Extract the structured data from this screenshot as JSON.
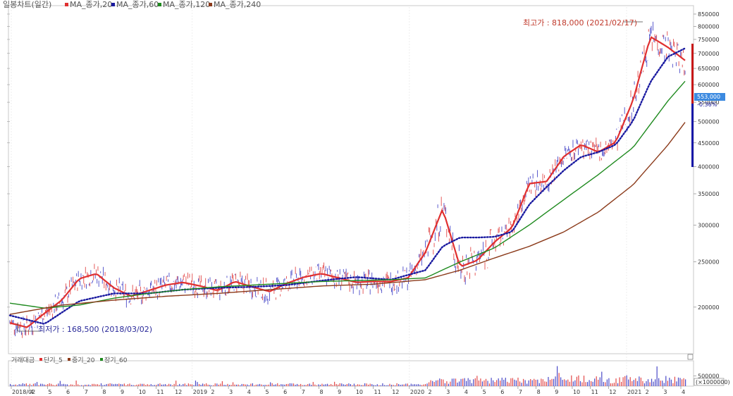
{
  "legend": {
    "main": "일봉차트(일간)",
    "items": [
      {
        "label": "MA_종가,20",
        "color": "#e03030"
      },
      {
        "label": "MA_종가,60",
        "color": "#1a1aa0"
      },
      {
        "label": "MA_종가,120",
        "color": "#1e8a1e"
      },
      {
        "label": "MA_종가,240",
        "color": "#8b3a1a"
      }
    ]
  },
  "volume_legend": {
    "main": "거래대금",
    "items": [
      {
        "label": "단기_5",
        "color": "#e03030"
      },
      {
        "label": "중기_20",
        "color": "#8b3a1a"
      },
      {
        "label": "장기_60",
        "color": "#1e8a1e"
      }
    ]
  },
  "chart_data": {
    "type": "line",
    "title": "",
    "yscale": "log",
    "ylim": [
      160000,
      880000
    ],
    "y_ticks": [
      200000,
      250000,
      300000,
      350000,
      400000,
      450000,
      500000,
      550000,
      600000,
      650000,
      700000,
      750000,
      800000,
      850000
    ],
    "y_tick_labels": [
      "200000",
      "250000",
      "300000",
      "350000",
      "400000",
      "450000",
      "500000",
      "550000",
      "600000",
      "650000",
      "700000",
      "750000",
      "800000",
      "850000"
    ],
    "x_tick_labels": [
      "2018/02",
      "4",
      "5",
      "6",
      "7",
      "8",
      "9",
      "10",
      "11",
      "12",
      "2019",
      "2",
      "3",
      "4",
      "5",
      "6",
      "7",
      "8",
      "9",
      "10",
      "11",
      "12",
      "2020",
      "2",
      "3",
      "4",
      "5",
      "6",
      "7",
      "8",
      "9",
      "10",
      "11",
      "12",
      "2021",
      "2",
      "3",
      "4"
    ],
    "current_price": {
      "label": "553,000",
      "change": "-0.36%"
    },
    "annotations": {
      "high": {
        "text": "최고가 : 818,000 (2021/02/17)",
        "value": 818000
      },
      "low": {
        "text": "최저가 : 168,500 (2018/03/02)",
        "value": 168500
      }
    },
    "series": [
      {
        "name": "MA_종가,20",
        "color": "#e03030",
        "x": [
          0,
          2,
          4,
          6,
          8,
          10,
          12,
          14,
          16,
          18,
          20,
          22,
          24,
          26,
          28,
          30,
          32,
          34,
          36,
          38,
          40,
          42,
          44,
          46,
          48,
          50,
          52,
          54,
          56,
          58,
          60,
          62,
          64,
          66,
          68,
          70,
          72,
          74,
          76,
          78
        ],
        "values": [
          185000,
          181000,
          194000,
          207000,
          230000,
          236000,
          220000,
          211000,
          217000,
          223000,
          226000,
          222000,
          217000,
          227000,
          221000,
          216000,
          225000,
          232000,
          236000,
          231000,
          226000,
          227000,
          227000,
          231000,
          262000,
          325000,
          244000,
          252000,
          276000,
          296000,
          368000,
          372000,
          421000,
          446000,
          430000,
          452000,
          556000,
          760000,
          722000,
          676000
        ]
      },
      {
        "name": "MA_종가,60",
        "color": "#1a1aa0",
        "x": [
          0,
          4,
          8,
          12,
          16,
          20,
          24,
          28,
          32,
          36,
          40,
          44,
          48,
          50,
          52,
          54,
          56,
          58,
          60,
          62,
          64,
          66,
          68,
          70,
          72,
          74,
          76,
          78
        ],
        "values": [
          192000,
          184000,
          206000,
          214000,
          214000,
          218000,
          220000,
          221000,
          223000,
          228000,
          232000,
          229000,
          240000,
          270000,
          282000,
          282000,
          283000,
          290000,
          332000,
          362000,
          393000,
          420000,
          430000,
          446000,
          502000,
          608000,
          688000,
          718000
        ]
      },
      {
        "name": "MA_종가,120",
        "color": "#1e8a1e",
        "x": [
          0,
          4,
          8,
          12,
          16,
          20,
          24,
          28,
          32,
          36,
          40,
          44,
          48,
          52,
          56,
          60,
          64,
          68,
          72,
          76,
          78
        ],
        "values": [
          204000,
          199000,
          202000,
          209000,
          214000,
          218000,
          221000,
          223000,
          225000,
          227000,
          228000,
          229000,
          231000,
          250000,
          268000,
          300000,
          340000,
          385000,
          440000,
          553000,
          610000
        ]
      },
      {
        "name": "MA_종가,240",
        "color": "#8b3a1a",
        "x": [
          0,
          6,
          12,
          18,
          24,
          30,
          36,
          42,
          48,
          52,
          56,
          60,
          64,
          68,
          72,
          76,
          78
        ],
        "values": [
          193000,
          202000,
          207000,
          211000,
          214000,
          218000,
          222000,
          224000,
          229000,
          240000,
          255000,
          270000,
          290000,
          320000,
          366000,
          445000,
          498000
        ]
      }
    ],
    "volume": {
      "ylim": [
        0,
        1100000
      ],
      "y_ticks": [
        500000
      ],
      "y_tick_labels": [
        "500000"
      ],
      "unit_label": "(×1000000)"
    }
  }
}
